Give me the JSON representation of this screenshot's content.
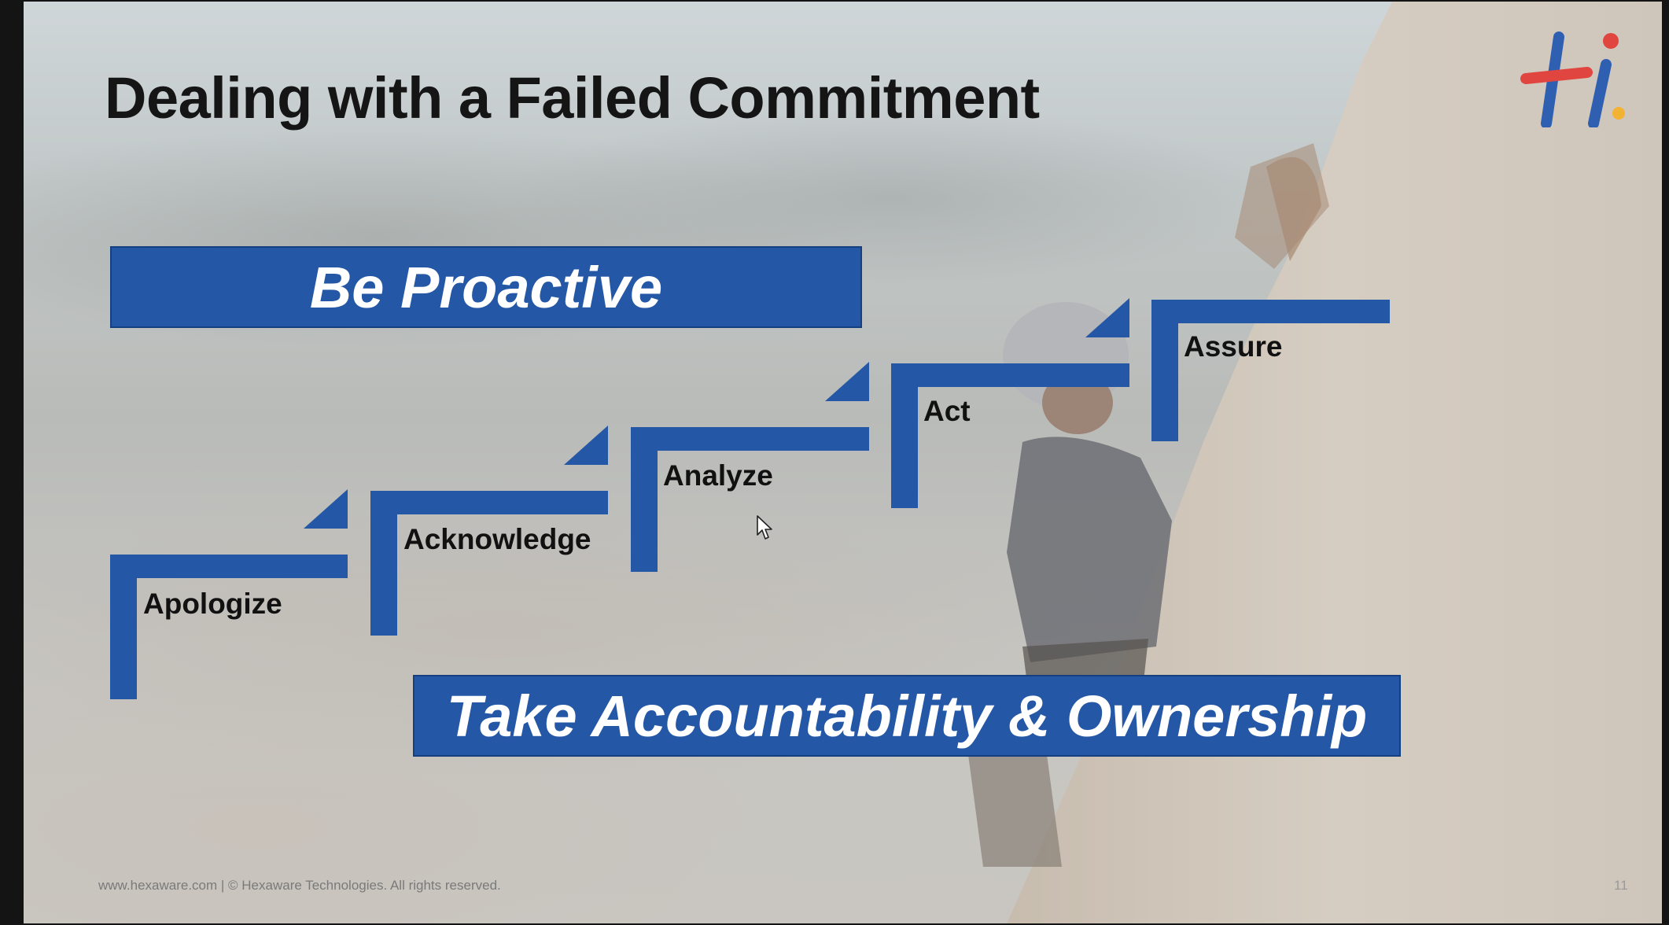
{
  "slide": {
    "title": "Dealing with a Failed Commitment",
    "banner_top": "Be Proactive",
    "banner_bottom": "Take Accountability & Ownership",
    "steps": [
      {
        "label": "Apologize"
      },
      {
        "label": "Acknowledge"
      },
      {
        "label": "Analyze"
      },
      {
        "label": "Act"
      },
      {
        "label": "Assure"
      }
    ],
    "footer": "www.hexaware.com  | © Hexaware Technologies. All rights reserved.",
    "page_number": "11",
    "logo_icon": "hexaware-hi-logo",
    "accent_color": "#2457a6"
  }
}
